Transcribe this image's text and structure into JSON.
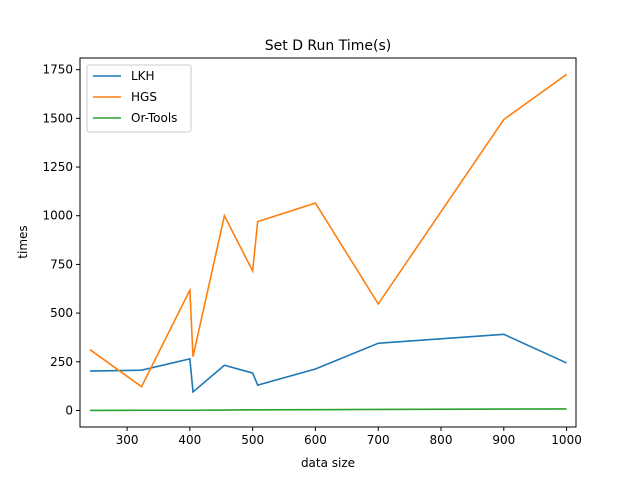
{
  "chart_data": {
    "type": "line",
    "title": "Set D Run Time(s)",
    "xlabel": "data size",
    "ylabel": "times",
    "xlim": [
      225,
      1015
    ],
    "ylim": [
      -85,
      1810
    ],
    "xticks": [
      300,
      400,
      500,
      600,
      700,
      800,
      900,
      1000
    ],
    "yticks": [
      0,
      250,
      500,
      750,
      1000,
      1250,
      1500,
      1750
    ],
    "grid": false,
    "legend": "top-left",
    "series": [
      {
        "name": "LKH",
        "color": "#1f77b4",
        "x": [
          241,
          323,
          400,
          405,
          455,
          500,
          508,
          600,
          700,
          900,
          1000
        ],
        "y": [
          202,
          207,
          265,
          95,
          232,
          192,
          130,
          213,
          345,
          391,
          244
        ]
      },
      {
        "name": "HGS",
        "color": "#ff7f0e",
        "x": [
          241,
          323,
          400,
          405,
          455,
          500,
          508,
          600,
          700,
          900,
          1000
        ],
        "y": [
          312,
          122,
          618,
          276,
          1000,
          716,
          970,
          1065,
          547,
          1494,
          1726
        ]
      },
      {
        "name": "Or-Tools",
        "color": "#2ca02c",
        "x": [
          241,
          323,
          400,
          405,
          455,
          500,
          508,
          600,
          700,
          900,
          1000
        ],
        "y": [
          0,
          1,
          1,
          1,
          2,
          3,
          3,
          4,
          5,
          7,
          8
        ]
      }
    ]
  }
}
